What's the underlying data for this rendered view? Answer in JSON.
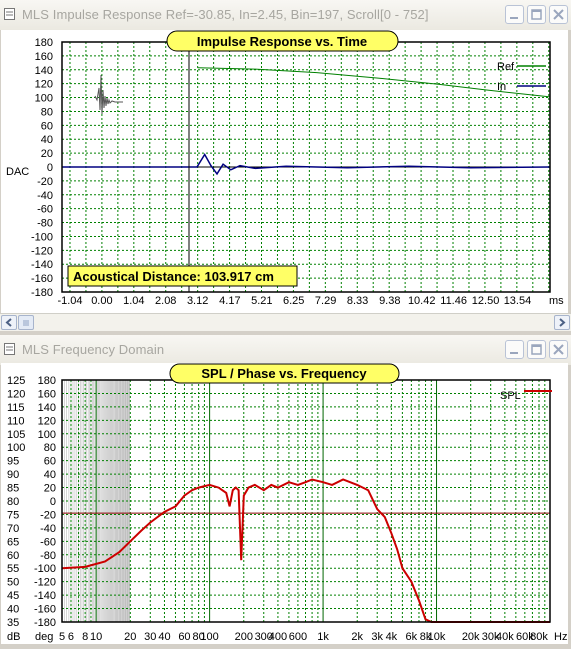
{
  "window1": {
    "title": "MLS Impulse Response  Ref=-30.85, In=2.45, Bin=197, Scroll[0 - 752]"
  },
  "window2": {
    "title": "MLS Frequency Domain"
  },
  "chart_data": [
    {
      "type": "line",
      "title": "Impulse Response vs. Time",
      "ylabel": "DAC",
      "xlabel": "ms",
      "ylim": [
        -180,
        180
      ],
      "y_ticks": [
        "180",
        "160",
        "140",
        "120",
        "100",
        "80",
        "60",
        "40",
        "20",
        "0",
        "-20",
        "-40",
        "-60",
        "-80",
        "-100",
        "-120",
        "-140",
        "-160",
        "-180"
      ],
      "x_ticks": [
        "-1.04",
        "0.00",
        "1.04",
        "2.08",
        "3.12",
        "4.17",
        "5.21",
        "6.25",
        "7.29",
        "8.33",
        "9.38",
        "10.42",
        "11.46",
        "12.50",
        "13.54"
      ],
      "grid": true,
      "legend_position": "top-right",
      "series": [
        {
          "name": "Ref",
          "color": "#008000",
          "x": [
            3.12,
            5.0,
            7.0,
            9.0,
            11.0,
            12.5,
            14.6
          ],
          "values": [
            143,
            141,
            136,
            128,
            119,
            111,
            101
          ]
        },
        {
          "name": "In",
          "color": "#000080",
          "x": [
            -1.3,
            3.1,
            3.35,
            3.55,
            3.75,
            3.95,
            4.2,
            4.5,
            5.0,
            6.0,
            8.0,
            10.0,
            12.0,
            14.6
          ],
          "values": [
            0,
            0,
            18,
            2,
            -10,
            4,
            -4,
            2,
            -2,
            1,
            -1,
            1,
            -1,
            0
          ]
        }
      ],
      "annotation": "Acoustical Distance: 103.917 cm"
    },
    {
      "type": "line",
      "title": "SPL / Phase vs. Frequency",
      "ylabel": "dB",
      "y2label": "deg",
      "xlabel": "Hz",
      "x_scale": "log",
      "ylim": [
        35,
        125
      ],
      "y2lim": [
        -180,
        180
      ],
      "y_ticks": [
        "125",
        "120",
        "115",
        "110",
        "105",
        "100",
        "95",
        "90",
        "85",
        "80",
        "75",
        "70",
        "65",
        "60",
        "55",
        "50",
        "45",
        "40",
        "35"
      ],
      "y2_ticks": [
        "180",
        "160",
        "140",
        "120",
        "100",
        "80",
        "60",
        "40",
        "20",
        "0",
        "-20",
        "-40",
        "-60",
        "-80",
        "-100",
        "-120",
        "-140",
        "-160",
        "-180"
      ],
      "x_ticks": [
        "5",
        "6",
        "8",
        "10",
        "20",
        "30",
        "40",
        "60",
        "80",
        "100",
        "200",
        "300",
        "400",
        "600",
        "1k",
        "2k",
        "3k",
        "4k",
        "6k",
        "8k",
        "10k",
        "20k",
        "30k",
        "40k",
        "60k",
        "80k"
      ],
      "grid": true,
      "legend_position": "top-right",
      "series": [
        {
          "name": "SPL",
          "color": "#cc0000",
          "x": [
            5,
            8,
            12,
            16,
            20,
            25,
            30,
            40,
            50,
            60,
            70,
            80,
            100,
            120,
            140,
            150,
            160,
            170,
            180,
            190,
            200,
            220,
            250,
            300,
            350,
            400,
            500,
            600,
            700,
            800,
            1000,
            1200,
            1500,
            2000,
            2500,
            3000,
            3500,
            4000,
            4500,
            5000,
            6000,
            7000,
            8000,
            9000
          ],
          "values": [
            55,
            55.5,
            57.5,
            61,
            65,
            69,
            72,
            76,
            78,
            82,
            84,
            85,
            86,
            85,
            83,
            78,
            84,
            85,
            84,
            58,
            82,
            85,
            86,
            84,
            86,
            85,
            87,
            86,
            87,
            88,
            87,
            86,
            88,
            86,
            84,
            77,
            74,
            68,
            62,
            55,
            50,
            43,
            36,
            35
          ]
        }
      ]
    }
  ]
}
